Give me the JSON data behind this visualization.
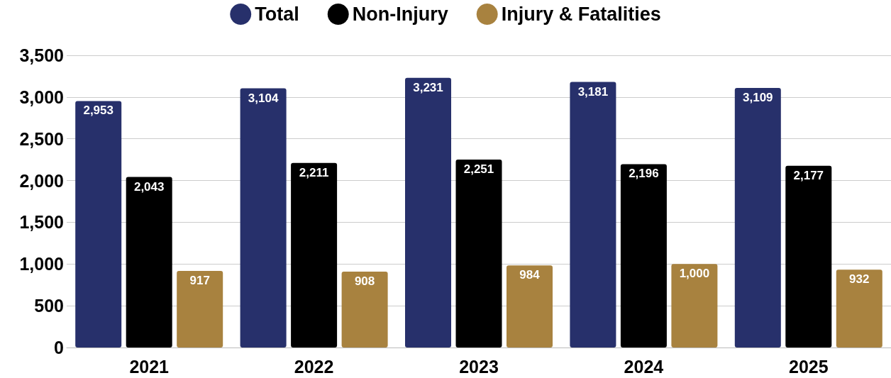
{
  "chart_data": {
    "type": "bar",
    "categories": [
      "2021",
      "2022",
      "2023",
      "2024",
      "2025"
    ],
    "series": [
      {
        "name": "Total",
        "color": "#27306b",
        "values": [
          2953,
          3104,
          3231,
          3181,
          3109
        ],
        "value_labels": [
          "2,953",
          "3,104",
          "3,231",
          "3,181",
          "3,109"
        ]
      },
      {
        "name": "Non-Injury",
        "color": "#000000",
        "values": [
          2043,
          2211,
          2251,
          2196,
          2177
        ],
        "value_labels": [
          "2,043",
          "2,211",
          "2,251",
          "2,196",
          "2,177"
        ]
      },
      {
        "name": "Injury & Fatalities",
        "color": "#a8823f",
        "values": [
          917,
          908,
          984,
          1000,
          932
        ],
        "value_labels": [
          "917",
          "908",
          "984",
          "1,000",
          "932"
        ]
      }
    ],
    "ylim": [
      0,
      3500
    ],
    "yticks": [
      0,
      500,
      {
        "value": 1000,
        "label": "1,000"
      },
      {
        "value": 1500,
        "label": "1,500"
      },
      {
        "value": 2000,
        "label": "2,000"
      },
      {
        "value": 2500,
        "label": "2,500"
      },
      {
        "value": 3000,
        "label": "3,000"
      },
      {
        "value": 3500,
        "label": "3,500"
      }
    ],
    "grid": "y",
    "legend": "top"
  }
}
